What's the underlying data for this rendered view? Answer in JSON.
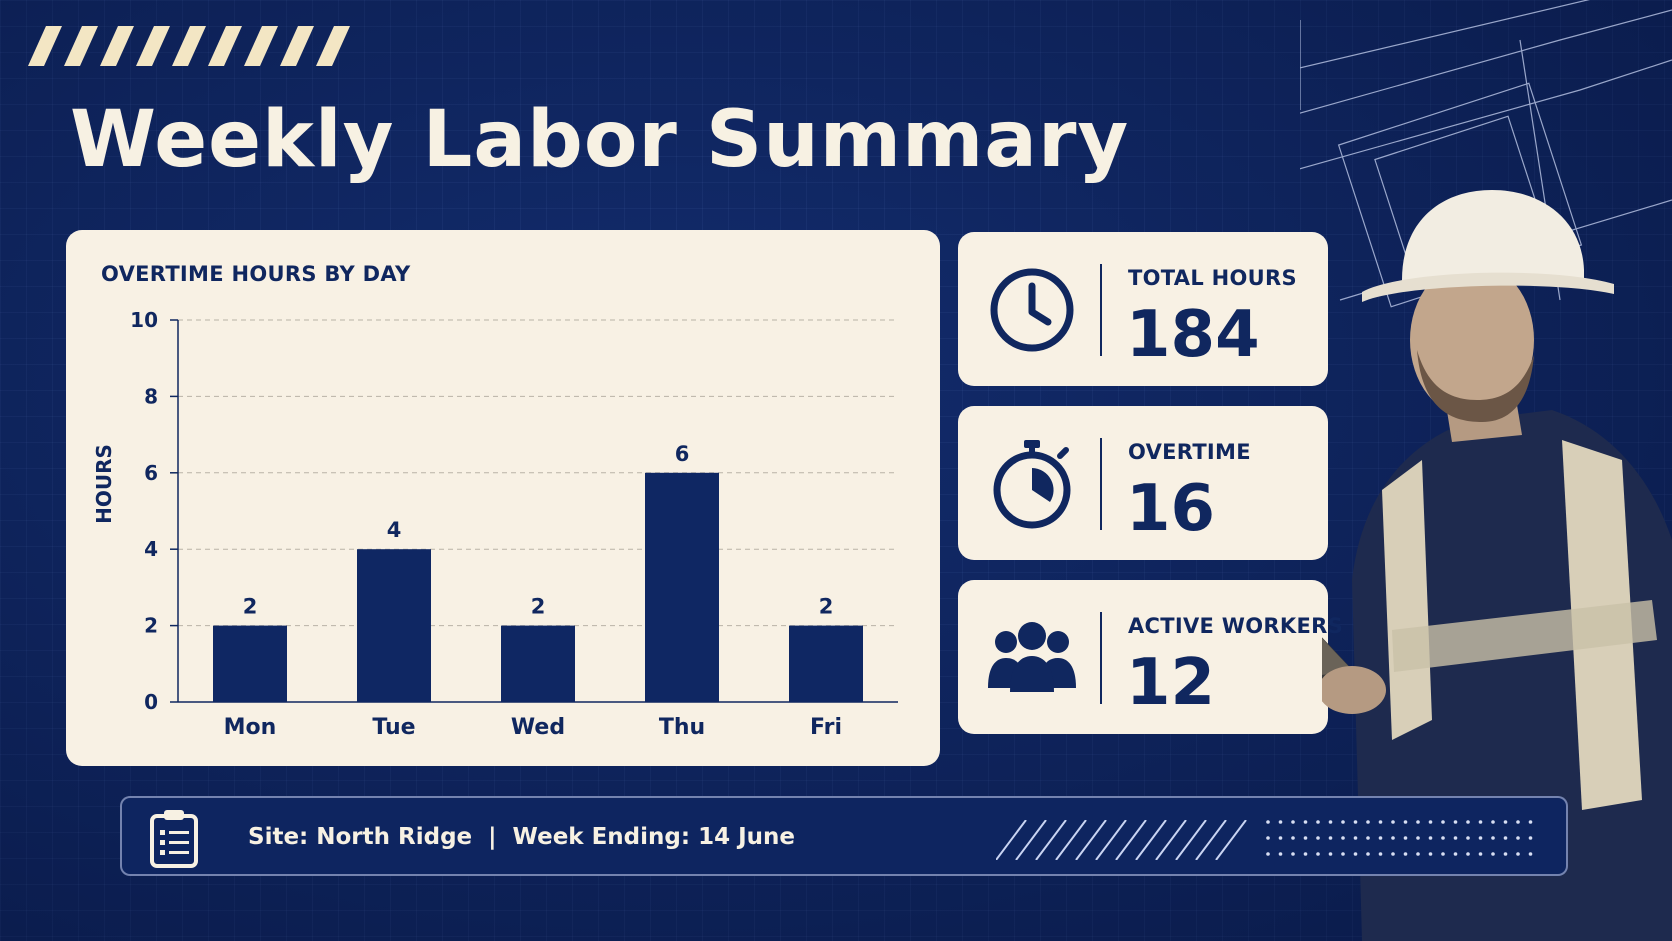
{
  "title": "Weekly Labor Summary",
  "chart_data": {
    "type": "bar",
    "title": "OVERTIME HOURS BY DAY",
    "ylabel": "HOURS",
    "xlabel": "",
    "categories": [
      "Mon",
      "Tue",
      "Wed",
      "Thu",
      "Fri"
    ],
    "values": [
      2,
      4,
      2,
      6,
      2
    ],
    "ylim": [
      0,
      10
    ],
    "yticks": [
      0,
      2,
      4,
      6,
      8,
      10
    ],
    "grid": true,
    "bar_color": "#0f2763"
  },
  "stats": [
    {
      "label": "TOTAL HOURS",
      "value": "184",
      "icon": "clock-icon"
    },
    {
      "label": "OVERTIME",
      "value": "16",
      "icon": "stopwatch-icon"
    },
    {
      "label": "ACTIVE WORKERS",
      "value": "12",
      "icon": "workers-group-icon"
    }
  ],
  "footer": {
    "site": "Site: North Ridge",
    "separator": "|",
    "week": "Week Ending: 14 June",
    "icon": "clipboard-icon"
  },
  "colors": {
    "background": "#0f2763",
    "card": "#f8f1e4",
    "accent": "#10275f",
    "hazard_stripe": "#f3e6c4"
  }
}
